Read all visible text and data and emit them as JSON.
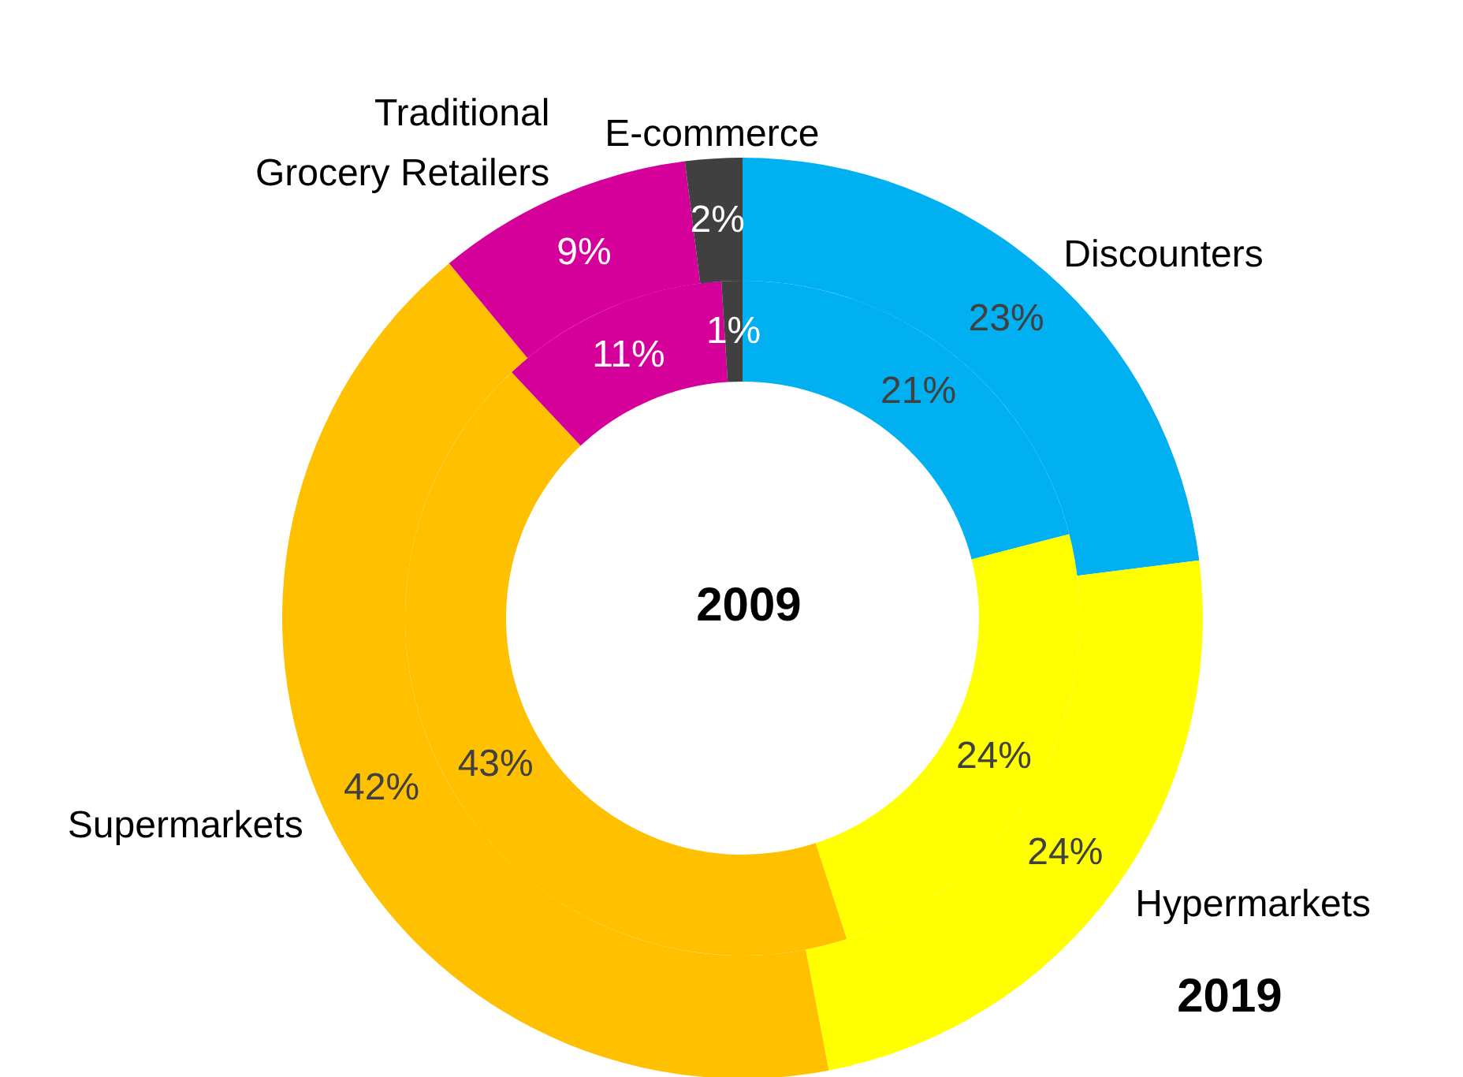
{
  "chart_data": {
    "type": "donut",
    "categories": [
      "Discounters",
      "Hypermarkets",
      "Supermarkets",
      "Traditional Grocery Retailers",
      "E-commerce"
    ],
    "colors": [
      "#00b0f0",
      "#ffff00",
      "#ffc000",
      "#d5009a",
      "#404040"
    ],
    "series": [
      {
        "name": "2009",
        "values": [
          21,
          24,
          43,
          11,
          1
        ],
        "value_labels": [
          "21%",
          "24%",
          "43%",
          "11%",
          "1%"
        ]
      },
      {
        "name": "2019",
        "values": [
          23,
          24,
          42,
          9,
          2
        ],
        "value_labels": [
          "23%",
          "24%",
          "42%",
          "9%",
          "2%"
        ]
      }
    ]
  }
}
